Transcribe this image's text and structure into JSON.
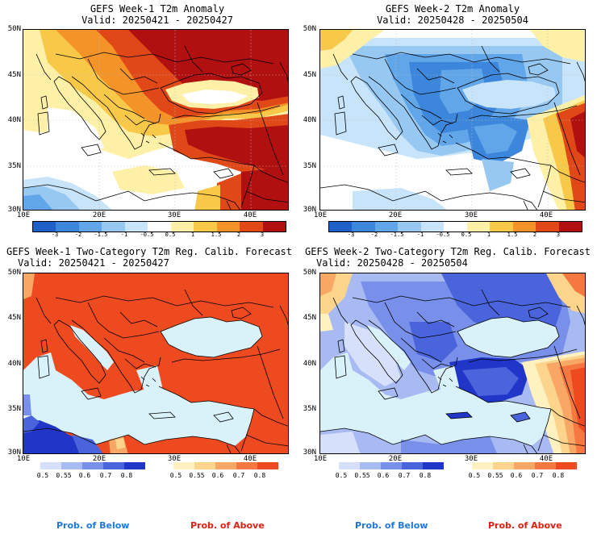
{
  "panels": {
    "p1": {
      "title": "GEFS Week-1 T2m Anomaly",
      "subtitle": "Valid: 20250421 - 20250427"
    },
    "p2": {
      "title": "GEFS Week-2 T2m Anomaly",
      "subtitle": "Valid: 20250428 - 20250504"
    },
    "p3": {
      "title": "GEFS Week-1 Two-Category T2m Reg. Calib. Forecast",
      "subtitle": "Valid: 20250421 - 20250427"
    },
    "p4": {
      "title": "GEFS Week-2 Two-Category T2m Reg. Calib. Forecast",
      "subtitle": "Valid: 20250428 - 20250504"
    }
  },
  "axes": {
    "lat_labels": [
      "50N",
      "45N",
      "40N",
      "35N",
      "30N"
    ],
    "lon_labels": [
      "10E",
      "20E",
      "30E",
      "40E"
    ]
  },
  "anomaly_colorbar": {
    "labels": [
      "-3",
      "-2",
      "-1.5",
      "-1",
      "-0.5",
      "0.5",
      "1",
      "1.5",
      "2",
      "3"
    ],
    "colors": [
      "#1f5fc8",
      "#3c86dc",
      "#62a6ea",
      "#96c8f2",
      "#c8e4fa",
      "#ffffff",
      "#fff0a8",
      "#f8c848",
      "#f49428",
      "#e04818",
      "#b01010"
    ]
  },
  "prob_colorbars": {
    "below": {
      "labels": [
        "0.5",
        "0.55",
        "0.6",
        "0.7",
        "0.8"
      ],
      "colors": [
        "#d6e0fa",
        "#a8baf2",
        "#7890ea",
        "#4a64dc",
        "#1f36c8"
      ],
      "caption": "Prob. of Below"
    },
    "above": {
      "labels": [
        "0.5",
        "0.55",
        "0.6",
        "0.7",
        "0.8"
      ],
      "colors": [
        "#fff2c0",
        "#fcd48c",
        "#f8a864",
        "#f47840",
        "#ee4a20"
      ],
      "caption": "Prob. of Above"
    }
  },
  "colors": {
    "sea_fill": "#d9f2f9",
    "map_outline": "#000000",
    "prob_below_text": "#1e78d8",
    "prob_above_text": "#e02010"
  }
}
